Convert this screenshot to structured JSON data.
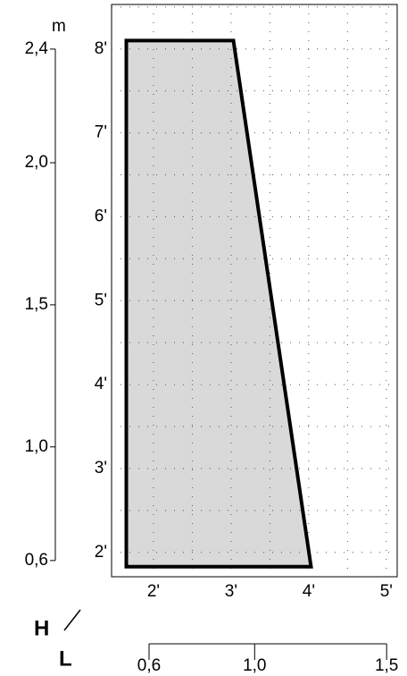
{
  "chart_data": {
    "type": "polygon",
    "unit_label": "m",
    "corner_labels": [
      "H",
      "L"
    ],
    "x": [
      1.65,
      3.03,
      4.03,
      1.65
    ],
    "y": [
      8.1,
      8.1,
      1.83,
      1.83
    ],
    "color": "#d9d9d9",
    "xlim": [
      1.46,
      5.14
    ],
    "ylim": [
      1.71,
      8.53
    ],
    "xticks": [
      {
        "value": 2,
        "label": "2'"
      },
      {
        "value": 3,
        "label": "3'"
      },
      {
        "value": 4,
        "label": "4'"
      },
      {
        "value": 5,
        "label": "5'"
      }
    ],
    "yticks": [
      {
        "value": 2,
        "label": "2'"
      },
      {
        "value": 3,
        "label": "3'"
      },
      {
        "value": 4,
        "label": "4'"
      },
      {
        "value": 5,
        "label": "5'"
      },
      {
        "value": 6,
        "label": "6'"
      },
      {
        "value": 7,
        "label": "7'"
      },
      {
        "value": 8,
        "label": "8'"
      }
    ],
    "xgrid": [
      2,
      2.5,
      3,
      3.5,
      4,
      4.5,
      5
    ],
    "ygrid": [
      2,
      2.5,
      3,
      3.5,
      4,
      4.5,
      5,
      5.5,
      6,
      6.5,
      7,
      7.5,
      8,
      8.5
    ],
    "y2lim": [
      0.543,
      2.557
    ],
    "y2ticks": [
      {
        "value": 0.6,
        "label": "0,6"
      },
      {
        "value": 1.0,
        "label": "1,0"
      },
      {
        "value": 1.5,
        "label": "1,5"
      },
      {
        "value": 2.0,
        "label": "2,0"
      },
      {
        "value": 2.4,
        "label": "2,4"
      }
    ],
    "x2lim": [
      0.458,
      1.54
    ],
    "x2ticks": [
      {
        "value": 0.6,
        "label": "0,6"
      },
      {
        "value": 1.0,
        "label": "1,0"
      },
      {
        "value": 1.5,
        "label": "1,5"
      }
    ]
  }
}
